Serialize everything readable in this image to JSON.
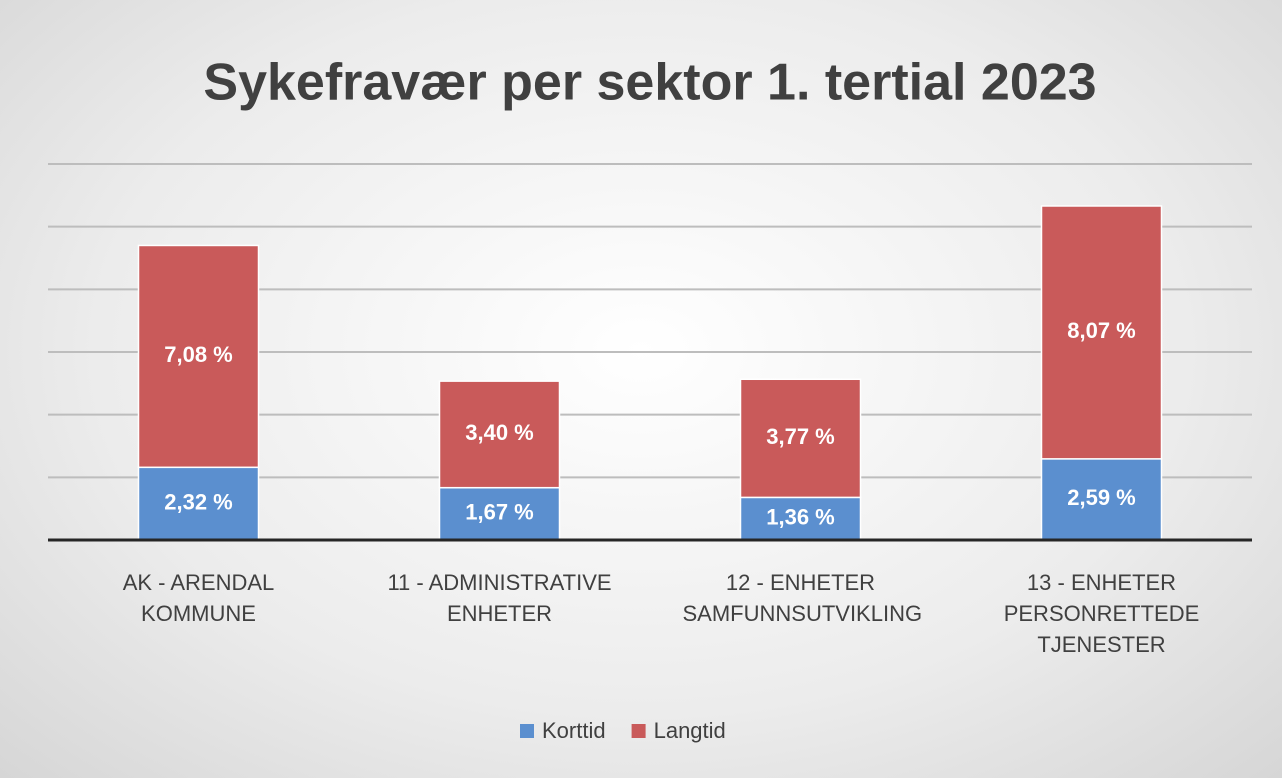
{
  "chart_data": {
    "type": "stacked_bar",
    "title": "Sykefravær per sektor 1. tertial 2023",
    "categories": [
      "AK - ARENDAL KOMMUNE",
      "11 - ADMINISTRATIVE ENHETER",
      "12 - ENHETER SAMFUNNSUTVIKLING",
      "13 - ENHETER PERSONRETTEDE TJENESTER"
    ],
    "series": [
      {
        "name": "Korttid",
        "color": "#5b8fcf",
        "values": [
          2.32,
          1.67,
          1.36,
          2.59
        ],
        "value_labels": [
          "2,32 %",
          "1,67 %",
          "1,36 %",
          "2,59 %"
        ]
      },
      {
        "name": "Langtid",
        "color": "#c95a5a",
        "values": [
          7.08,
          3.4,
          3.77,
          8.07
        ],
        "value_labels": [
          "7,08 %",
          "3,40 %",
          "3,77 %",
          "8,07 %"
        ]
      }
    ],
    "ylim": [
      0,
      12
    ],
    "yticks": [
      0,
      2,
      4,
      6,
      8,
      10,
      12
    ],
    "grid": true,
    "legend": "bottom"
  }
}
